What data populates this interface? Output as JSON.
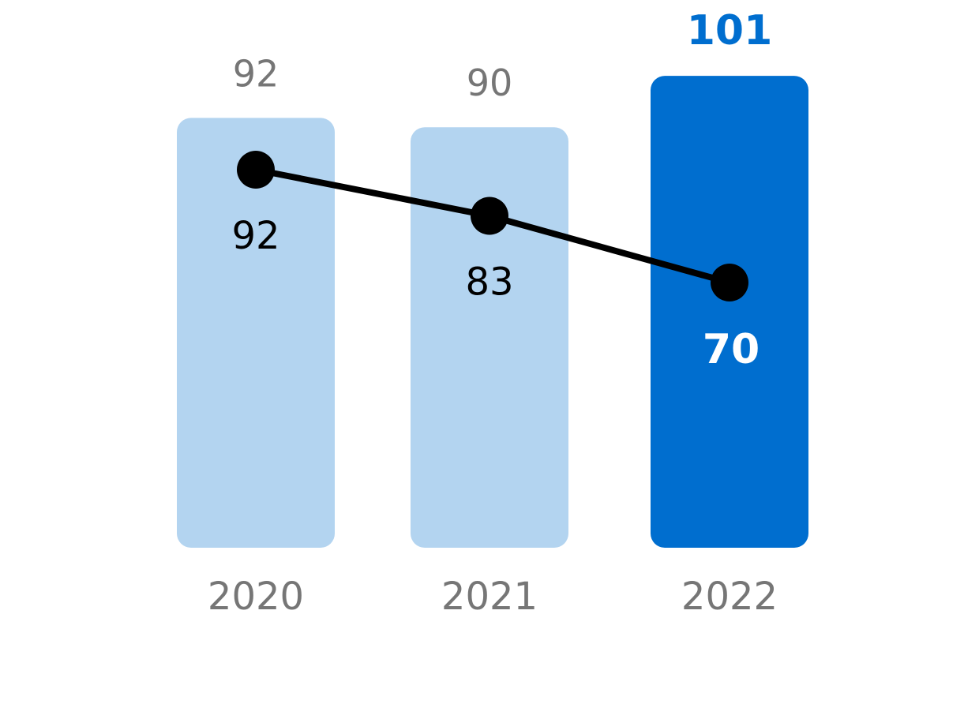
{
  "chart_data": {
    "type": "bar",
    "title": "",
    "xlabel": "",
    "ylabel": "",
    "categories": [
      "2020",
      "2021",
      "2022"
    ],
    "series": [
      {
        "values": [
          92,
          90,
          101
        ],
        "kind": "bar"
      },
      {
        "values": [
          92,
          83,
          70
        ],
        "kind": "line"
      }
    ],
    "ylim": [
      0,
      101
    ],
    "grid": false,
    "legend": "none",
    "highlight_index": 2,
    "colors": {
      "bar": "#b3d4f0",
      "bar_highlight": "#006ecf",
      "bar_label": "#767676",
      "bar_label_highlight": "#006ecf",
      "line": "#000000",
      "line_label": "#000000",
      "line_label_highlight": "#ffffff",
      "tick_label": "#767676"
    }
  }
}
